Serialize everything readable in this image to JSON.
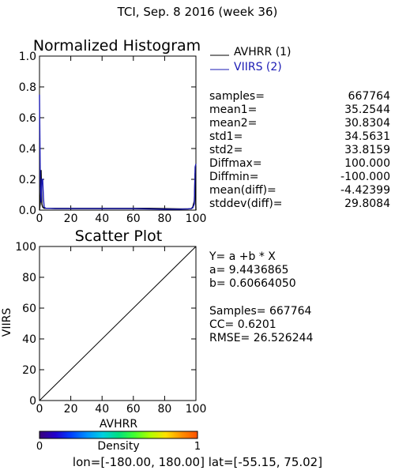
{
  "page": {
    "title": "TCI,  Sep. 8 2016 (week 36)",
    "footer": "lon=[-180.00, 180.00] lat=[-55.15, 75.02]"
  },
  "colors": {
    "avhrr": "#000000",
    "viirs": "#1a1ab4",
    "axis": "#000000"
  },
  "chart_data": [
    {
      "type": "line",
      "title": "Normalized Histogram",
      "xlim": [
        0,
        100
      ],
      "ylim": [
        0.0,
        1.0
      ],
      "x_ticks": [
        0,
        20,
        40,
        60,
        80,
        100
      ],
      "y_ticks": [
        0.0,
        0.2,
        0.4,
        0.6,
        0.8,
        1.0
      ],
      "series": [
        {
          "name": "AVHRR (1)",
          "color": "#000000",
          "x": [
            0,
            0.5,
            1,
            1.5,
            2,
            3,
            5,
            10,
            20,
            30,
            40,
            50,
            60,
            70,
            80,
            90,
            95,
            97,
            98,
            99,
            99.5,
            100
          ],
          "y": [
            0.0,
            0.05,
            0.26,
            0.04,
            0.02,
            0.012,
            0.012,
            0.012,
            0.012,
            0.012,
            0.012,
            0.012,
            0.012,
            0.012,
            0.01,
            0.008,
            0.008,
            0.01,
            0.02,
            0.06,
            0.24,
            0.0
          ]
        },
        {
          "name": "VIIRS (2)",
          "color": "#1a1ab4",
          "x": [
            0,
            0.5,
            1,
            1.5,
            2,
            2.5,
            3,
            4,
            5,
            10,
            20,
            30,
            40,
            50,
            60,
            70,
            80,
            90,
            95,
            97,
            98,
            99,
            99.5,
            100
          ],
          "y": [
            0.75,
            0.18,
            0.05,
            0.2,
            0.2,
            0.08,
            0.02,
            0.012,
            0.012,
            0.01,
            0.01,
            0.01,
            0.01,
            0.01,
            0.01,
            0.008,
            0.006,
            0.006,
            0.008,
            0.01,
            0.015,
            0.04,
            0.28,
            0.3
          ]
        }
      ],
      "stats": [
        {
          "label": "samples=",
          "value": "667764"
        },
        {
          "label": "mean1=",
          "value": "35.2544"
        },
        {
          "label": "mean2=",
          "value": "30.8304"
        },
        {
          "label": "std1=",
          "value": "34.5631"
        },
        {
          "label": "std2=",
          "value": "33.8159"
        },
        {
          "label": "Diffmax=",
          "value": "100.000"
        },
        {
          "label": "Diffmin=",
          "value": "-100.000"
        },
        {
          "label": "mean(diff)=",
          "value": "-4.42399"
        },
        {
          "label": "stddev(diff)=",
          "value": "29.8084"
        }
      ]
    },
    {
      "type": "scatter",
      "title": "Scatter Plot",
      "xlabel": "AVHRR",
      "ylabel": "VIIRS",
      "xlim": [
        0,
        100
      ],
      "ylim": [
        0,
        100
      ],
      "x_ticks": [
        0,
        20,
        40,
        60,
        80,
        100
      ],
      "y_ticks": [
        0,
        20,
        40,
        60,
        80,
        100
      ],
      "reference_line": {
        "x": [
          0,
          100
        ],
        "y": [
          0,
          100
        ]
      },
      "regression": {
        "equation": "Y= a +b * X",
        "a_text": "a=  9.4436865",
        "b_text": "b=  0.60664050"
      },
      "stats_text": [
        "Samples=  667764",
        "CC=   0.6201",
        "RMSE=  26.526244"
      ],
      "colorbar": {
        "label": "Density",
        "min_label": "0",
        "max_label": "1",
        "colors": [
          "#3a007a",
          "#2200cc",
          "#0040ff",
          "#0090ff",
          "#00d0e0",
          "#00e080",
          "#40ff30",
          "#b0ff00",
          "#ffe000",
          "#ff9000",
          "#ff5000"
        ]
      }
    }
  ]
}
